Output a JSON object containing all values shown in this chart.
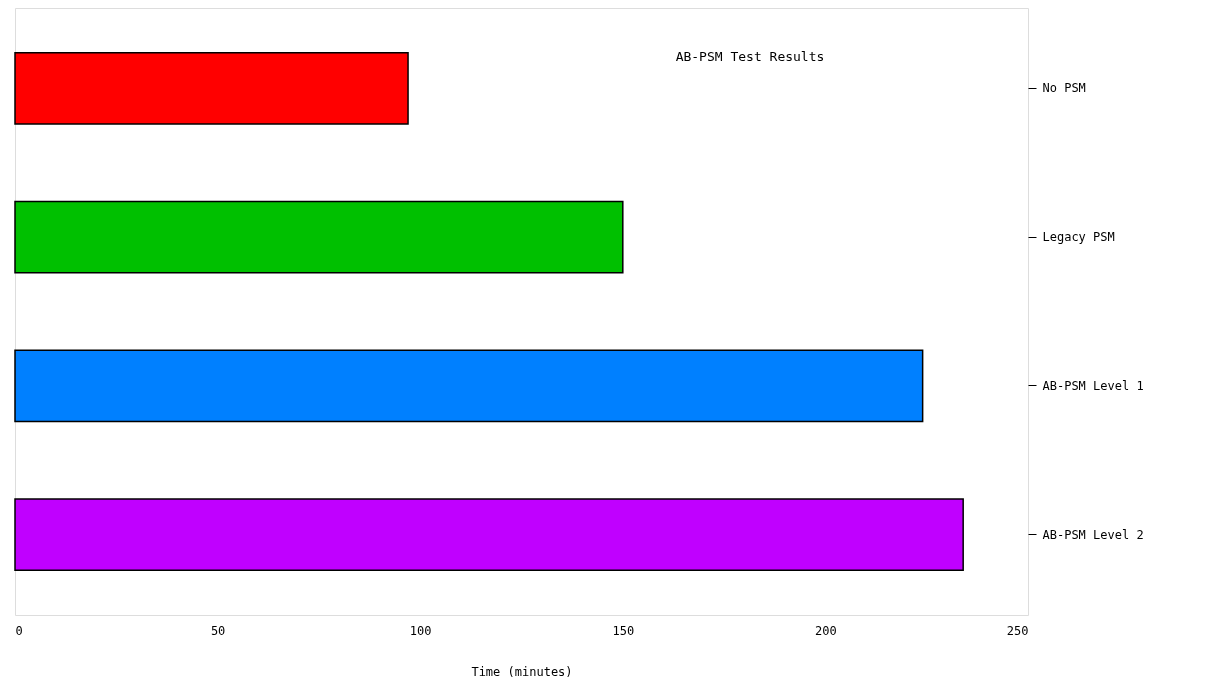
{
  "chart_data": {
    "type": "bar",
    "orientation": "horizontal",
    "title": "AB-PSM Test Results",
    "xlabel": "Time (minutes)",
    "categories": [
      "No PSM",
      "Legacy PSM",
      "AB-PSM Level 1",
      "AB-PSM Level 2"
    ],
    "values": [
      97,
      150,
      224,
      234
    ],
    "colors": [
      "#ff0000",
      "#00c000",
      "#0080ff",
      "#c000ff"
    ],
    "xlim": [
      0,
      250
    ],
    "xticks": [
      0,
      50,
      100,
      150,
      200,
      250
    ],
    "grid": false,
    "legend": false
  }
}
